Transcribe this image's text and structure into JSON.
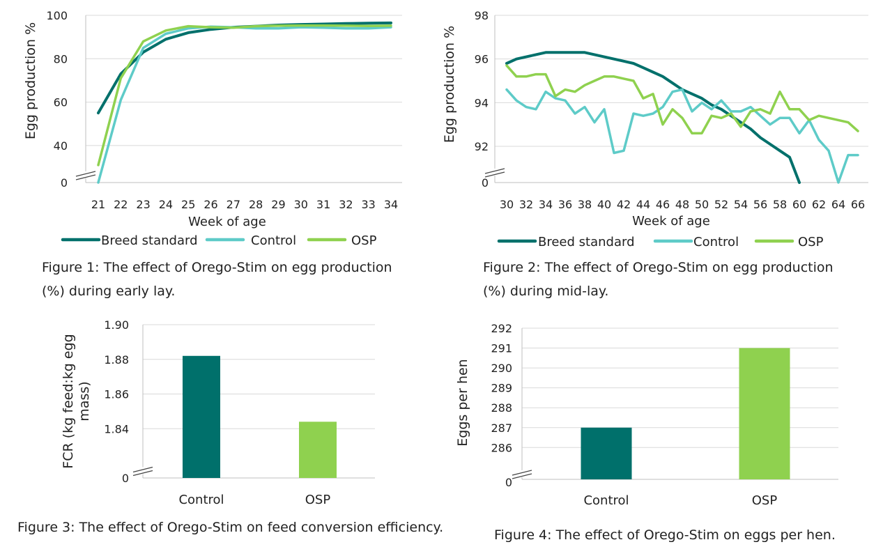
{
  "colors": {
    "breed": "#00706b",
    "control": "#5ecbc8",
    "osp": "#8fd14f",
    "grid": "#d9d9d9",
    "axis": "#bfbfbf",
    "text": "#222222"
  },
  "captions": {
    "fig1": [
      "Figure 1: The effect of Orego-Stim on egg production",
      "(%) during early lay."
    ],
    "fig2": [
      "Figure 2: The effect of Orego-Stim on egg production",
      "(%) during mid-lay."
    ],
    "fig3": [
      "Figure 3: The effect of Orego-Stim on feed conversion efficiency."
    ],
    "fig4": [
      "Figure 4: The effect of Orego-Stim on eggs per hen."
    ]
  },
  "chart_data": [
    {
      "id": "fig1",
      "type": "line",
      "title": "",
      "xlabel": "Week of age",
      "ylabel": "Egg production %",
      "x": [
        21,
        22,
        23,
        24,
        25,
        26,
        27,
        28,
        29,
        30,
        31,
        32,
        33,
        34
      ],
      "yticks": [
        "0",
        "40",
        "60",
        "80",
        "100"
      ],
      "ylim_upper": [
        30,
        100
      ],
      "axis_break": true,
      "grid": true,
      "legend": "bottom",
      "series": [
        {
          "name": "Breed standard",
          "color_key": "breed",
          "values": [
            55,
            73,
            83,
            89,
            92,
            93.5,
            94.5,
            95,
            95.5,
            95.8,
            96,
            96.2,
            96.4,
            96.5
          ]
        },
        {
          "name": "Control",
          "color_key": "control",
          "values": [
            0,
            61,
            85,
            91.5,
            94,
            94.8,
            94.5,
            94,
            94,
            94.5,
            94.3,
            94,
            94,
            94.5
          ]
        },
        {
          "name": "OSP",
          "color_key": "osp",
          "values": [
            31,
            71,
            88,
            93,
            95,
            94.5,
            94.3,
            95,
            95.2,
            95.3,
            95.3,
            95.2,
            95.1,
            95.2
          ]
        }
      ]
    },
    {
      "id": "fig2",
      "type": "line",
      "title": "",
      "xlabel": "Week of age",
      "ylabel": "Egg production %",
      "x": [
        30,
        31,
        32,
        33,
        34,
        35,
        36,
        37,
        38,
        39,
        40,
        41,
        42,
        43,
        44,
        45,
        46,
        47,
        48,
        49,
        50,
        51,
        52,
        53,
        54,
        55,
        56,
        57,
        58,
        59,
        60,
        61,
        62,
        63,
        64,
        65,
        66
      ],
      "xticks": [
        "30",
        "32",
        "34",
        "36",
        "38",
        "40",
        "42",
        "44",
        "46",
        "48",
        "50",
        "52",
        "54",
        "56",
        "58",
        "60",
        "62",
        "64",
        "66"
      ],
      "yticks": [
        "0",
        "92",
        "94",
        "96",
        "98"
      ],
      "ylim_upper": [
        91.3,
        98
      ],
      "axis_break": true,
      "grid": true,
      "legend": "bottom",
      "series": [
        {
          "name": "Breed standard",
          "color_key": "breed",
          "values": [
            95.8,
            96,
            96.1,
            96.2,
            96.3,
            96.3,
            96.3,
            96.3,
            96.3,
            96.2,
            96.1,
            96,
            95.9,
            95.8,
            95.6,
            95.4,
            95.2,
            94.9,
            94.6,
            94.4,
            94.2,
            93.9,
            93.7,
            93.4,
            93.1,
            92.8,
            92.4,
            92.1,
            91.8,
            91.5,
            91.1,
            null,
            null,
            null,
            null,
            null,
            null
          ]
        },
        {
          "name": "Control",
          "color_key": "control",
          "values": [
            94.6,
            94.1,
            93.8,
            93.7,
            94.5,
            94.2,
            94.1,
            93.5,
            93.8,
            93.1,
            93.7,
            91.7,
            91.8,
            93.5,
            93.4,
            93.5,
            93.8,
            94.5,
            94.6,
            93.6,
            94,
            93.7,
            94.1,
            93.6,
            93.6,
            93.8,
            93.4,
            93,
            93.3,
            93.3,
            92.6,
            93.2,
            92.3,
            91.8,
            91.2,
            91.6,
            91.6
          ]
        },
        {
          "name": "OSP",
          "color_key": "osp",
          "values": [
            95.7,
            95.2,
            95.2,
            95.3,
            95.3,
            94.3,
            94.6,
            94.5,
            94.8,
            95,
            95.2,
            95.2,
            95.1,
            95,
            94.2,
            94.4,
            93,
            93.7,
            93.3,
            92.6,
            92.6,
            93.4,
            93.3,
            93.5,
            92.9,
            93.6,
            93.7,
            93.5,
            94.5,
            93.7,
            93.7,
            93.2,
            93.4,
            93.3,
            93.2,
            93.1,
            92.7
          ]
        }
      ]
    },
    {
      "id": "fig3",
      "type": "bar",
      "title": "",
      "xlabel": "",
      "ylabel_lines": [
        "FCR (kg feed:kg egg",
        "mass)"
      ],
      "categories": [
        "Control",
        "OSP"
      ],
      "values": [
        1.882,
        1.844
      ],
      "bar_color_keys": [
        "breed",
        "osp"
      ],
      "yticks": [
        "0",
        "1.84",
        "1.86",
        "1.88",
        "1.90"
      ],
      "ylim_upper": [
        1.82,
        1.9
      ],
      "axis_break": true,
      "grid": true
    },
    {
      "id": "fig4",
      "type": "bar",
      "title": "",
      "xlabel": "",
      "ylabel_lines": [
        "Eggs per hen"
      ],
      "categories": [
        "Control",
        "OSP"
      ],
      "values": [
        287,
        291
      ],
      "bar_color_keys": [
        "breed",
        "osp"
      ],
      "yticks": [
        "0",
        "286",
        "287",
        "288",
        "289",
        "290",
        "291",
        "292"
      ],
      "ylim_upper": [
        285.1,
        292
      ],
      "axis_break": true,
      "grid": true
    }
  ]
}
